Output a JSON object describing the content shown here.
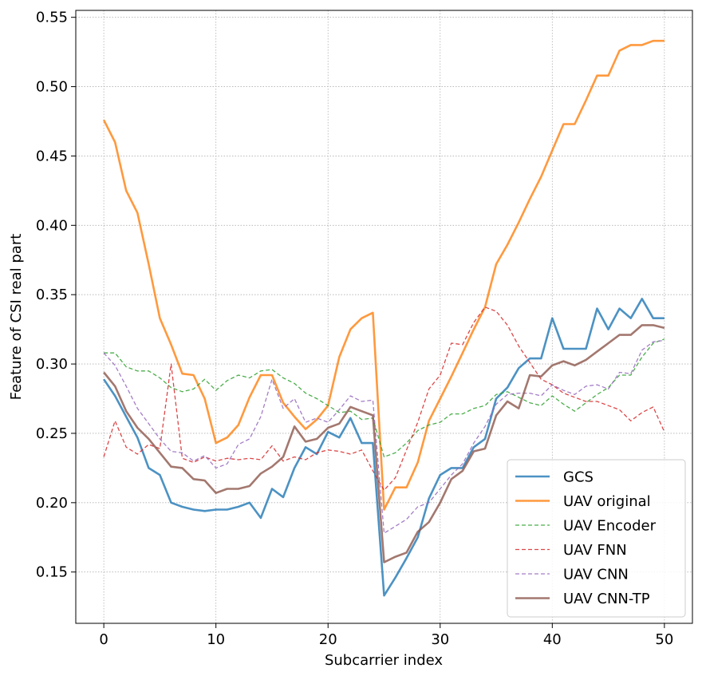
{
  "chart_data": {
    "type": "line",
    "xlabel": "Subcarrier index",
    "ylabel": "Feature of CSI real part",
    "xlim": [
      -2.5,
      52.5
    ],
    "ylim": [
      0.113,
      0.555
    ],
    "xticks": [
      0,
      10,
      20,
      30,
      40,
      50
    ],
    "yticks": [
      0.15,
      0.2,
      0.25,
      0.3,
      0.35,
      0.4,
      0.45,
      0.5,
      0.55
    ],
    "grid": true,
    "legend_position": "lower-right",
    "series": [
      {
        "name": "GCS",
        "color": "#1f77b4",
        "style": "solid",
        "values": [
          0.289,
          0.277,
          0.262,
          0.247,
          0.225,
          0.22,
          0.2,
          0.197,
          0.195,
          0.194,
          0.195,
          0.195,
          0.197,
          0.2,
          0.189,
          0.21,
          0.204,
          0.225,
          0.24,
          0.235,
          0.251,
          0.247,
          0.261,
          0.243,
          0.243,
          0.133,
          0.146,
          0.16,
          0.175,
          0.203,
          0.22,
          0.225,
          0.225,
          0.24,
          0.246,
          0.275,
          0.283,
          0.297,
          0.304,
          0.304,
          0.333,
          0.311,
          0.311,
          0.311,
          0.34,
          0.325,
          0.34,
          0.333,
          0.347,
          0.333,
          0.333
        ]
      },
      {
        "name": "UAV original",
        "color": "#ff7f0e",
        "style": "solid",
        "values": [
          0.476,
          0.46,
          0.425,
          0.409,
          0.372,
          0.333,
          0.314,
          0.293,
          0.292,
          0.275,
          0.243,
          0.247,
          0.256,
          0.276,
          0.292,
          0.292,
          0.272,
          0.262,
          0.253,
          0.26,
          0.27,
          0.305,
          0.325,
          0.333,
          0.337,
          0.195,
          0.211,
          0.211,
          0.229,
          0.259,
          0.275,
          0.291,
          0.308,
          0.325,
          0.341,
          0.372,
          0.386,
          0.402,
          0.419,
          0.435,
          0.454,
          0.473,
          0.473,
          0.49,
          0.508,
          0.508,
          0.526,
          0.53,
          0.53,
          0.533,
          0.533
        ]
      },
      {
        "name": "UAV Encoder",
        "color": "#2ca02c",
        "style": "dashed",
        "values": [
          0.308,
          0.308,
          0.298,
          0.295,
          0.295,
          0.29,
          0.283,
          0.28,
          0.282,
          0.289,
          0.281,
          0.288,
          0.292,
          0.29,
          0.295,
          0.296,
          0.29,
          0.286,
          0.279,
          0.275,
          0.27,
          0.265,
          0.266,
          0.26,
          0.261,
          0.233,
          0.236,
          0.243,
          0.252,
          0.256,
          0.258,
          0.264,
          0.264,
          0.268,
          0.27,
          0.278,
          0.28,
          0.276,
          0.272,
          0.27,
          0.277,
          0.271,
          0.266,
          0.272,
          0.278,
          0.283,
          0.292,
          0.292,
          0.305,
          0.315,
          0.318
        ]
      },
      {
        "name": "UAV FNN",
        "color": "#d62728",
        "style": "dashed",
        "values": [
          0.233,
          0.259,
          0.24,
          0.235,
          0.242,
          0.239,
          0.3,
          0.232,
          0.229,
          0.233,
          0.23,
          0.232,
          0.231,
          0.232,
          0.231,
          0.241,
          0.23,
          0.233,
          0.231,
          0.236,
          0.238,
          0.237,
          0.235,
          0.238,
          0.223,
          0.209,
          0.218,
          0.238,
          0.258,
          0.282,
          0.292,
          0.315,
          0.314,
          0.33,
          0.341,
          0.338,
          0.328,
          0.313,
          0.301,
          0.289,
          0.285,
          0.279,
          0.276,
          0.273,
          0.273,
          0.27,
          0.267,
          0.259,
          0.265,
          0.269,
          0.251
        ]
      },
      {
        "name": "UAV CNN",
        "color": "#9467bd",
        "style": "dashed",
        "values": [
          0.308,
          0.299,
          0.284,
          0.268,
          0.257,
          0.246,
          0.237,
          0.236,
          0.23,
          0.234,
          0.225,
          0.228,
          0.242,
          0.246,
          0.262,
          0.289,
          0.268,
          0.275,
          0.258,
          0.261,
          0.258,
          0.267,
          0.277,
          0.273,
          0.274,
          0.178,
          0.183,
          0.188,
          0.197,
          0.2,
          0.21,
          0.22,
          0.228,
          0.243,
          0.255,
          0.271,
          0.278,
          0.279,
          0.279,
          0.277,
          0.285,
          0.281,
          0.278,
          0.284,
          0.285,
          0.282,
          0.294,
          0.293,
          0.31,
          0.316,
          0.317
        ]
      },
      {
        "name": "UAV CNN-TP",
        "color": "#8c564b",
        "style": "solid",
        "values": [
          0.294,
          0.284,
          0.266,
          0.254,
          0.246,
          0.236,
          0.226,
          0.225,
          0.217,
          0.216,
          0.207,
          0.21,
          0.21,
          0.212,
          0.221,
          0.226,
          0.233,
          0.255,
          0.244,
          0.246,
          0.254,
          0.257,
          0.269,
          0.266,
          0.263,
          0.157,
          0.161,
          0.164,
          0.179,
          0.186,
          0.2,
          0.217,
          0.223,
          0.237,
          0.239,
          0.263,
          0.273,
          0.268,
          0.292,
          0.291,
          0.299,
          0.302,
          0.299,
          0.303,
          0.309,
          0.315,
          0.321,
          0.321,
          0.328,
          0.328,
          0.326
        ]
      }
    ]
  }
}
